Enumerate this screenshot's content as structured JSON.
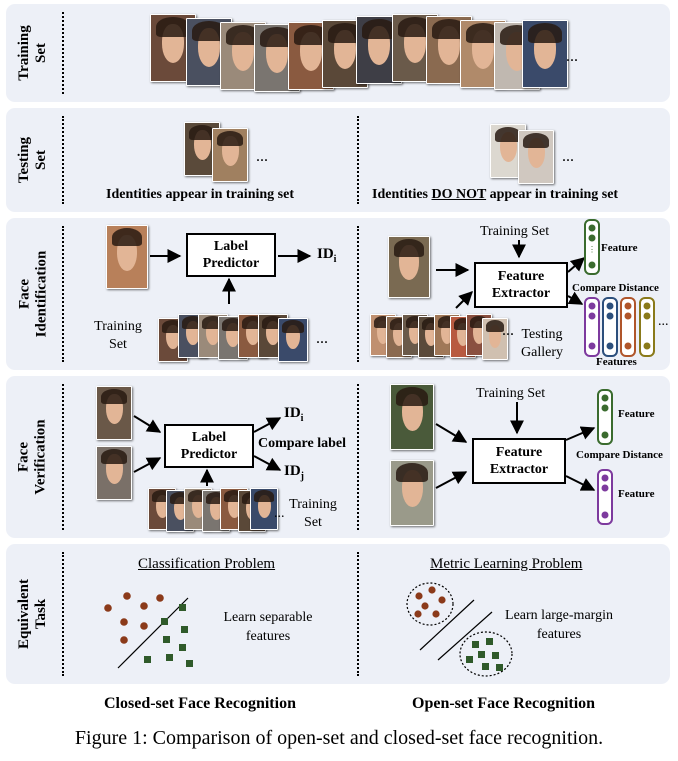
{
  "rows": {
    "training_set": "Training Set",
    "testing_set": "Testing Set",
    "face_identification": "Face Identification",
    "face_verification": "Face Verification",
    "equivalent_task": "Equivalent Task"
  },
  "testing": {
    "left_caption": "Identities appear in training set",
    "right_caption_pre": "Identities ",
    "right_caption_emph": "DO NOT",
    "right_caption_post": " appear in training set"
  },
  "identification": {
    "label_predictor": "Label Predictor",
    "output_id": "ID",
    "output_sub": "i",
    "training_set": "Training Set",
    "feature_extractor": "Feature Extractor",
    "training_set_right": "Training Set",
    "feature": "Feature",
    "compare_distance": "Compare Distance",
    "features": "Features",
    "testing_gallery": "Testing Gallery"
  },
  "verification": {
    "label_predictor": "Label Predictor",
    "id_i": "ID",
    "sub_i": "i",
    "id_j": "ID",
    "sub_j": "j",
    "compare_label": "Compare label",
    "training_set": "Training Set",
    "feature_extractor": "Feature Extractor",
    "training_set_right": "Training Set",
    "feature_top": "Feature",
    "compare_distance": "Compare Distance",
    "feature_bottom": "Feature"
  },
  "equivalent": {
    "classification_title": "Classification Problem",
    "classification_text": "Learn separable features",
    "metric_title": "Metric Learning Problem",
    "metric_text": "Learn large-margin features"
  },
  "footer": {
    "closed_set": "Closed-set Face Recognition",
    "open_set": "Open-set Face Recognition"
  },
  "ellipsis": "...",
  "caption": "Figure 1: Comparison of open-set and closed-set face recognition.",
  "colors": {
    "panel": "#edf0f7",
    "brown_dot": "#8b3a1a",
    "green_square": "#2f5a2a",
    "feature_green": "#3a6b2e",
    "feature_purple": "#7d3a9e",
    "feature_blue": "#2c4f7c",
    "feature_orange": "#b0552a",
    "feature_olive": "#8a7a1a"
  }
}
